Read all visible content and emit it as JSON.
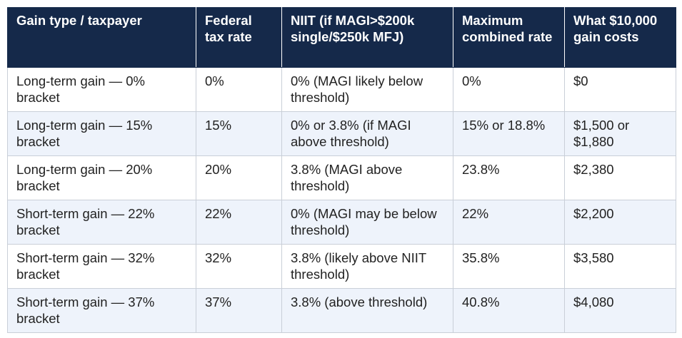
{
  "table": {
    "headers": [
      "Gain type / taxpayer",
      "Federal tax rate",
      "NIIT (if MAGI>$200k single/$250k MFJ)",
      "Maximum combined rate",
      "What $10,000 gain costs"
    ],
    "rows": [
      [
        "Long-term gain — 0% bracket",
        "0%",
        "0% (MAGI likely below threshold)",
        "0%",
        "$0"
      ],
      [
        "Long-term gain — 15% bracket",
        "15%",
        "0% or 3.8% (if MAGI above threshold)",
        "15% or 18.8%",
        "$1,500 or $1,880"
      ],
      [
        "Long-term gain — 20% bracket",
        "20%",
        "3.8% (MAGI above threshold)",
        "23.8%",
        "$2,380"
      ],
      [
        "Short-term gain — 22% bracket",
        "22%",
        "0% (MAGI may be below threshold)",
        "22%",
        "$2,200"
      ],
      [
        "Short-term gain — 32% bracket",
        "32%",
        "3.8% (likely above NIIT threshold)",
        "35.8%",
        "$3,580"
      ],
      [
        "Short-term gain — 37% bracket",
        "37%",
        "3.8% (above threshold)",
        "40.8%",
        "$4,080"
      ]
    ]
  },
  "colors": {
    "header_bg": "#15294a",
    "header_text": "#ffffff",
    "row_alt_bg": "#eef3fb",
    "border": "#c9cfd8"
  }
}
